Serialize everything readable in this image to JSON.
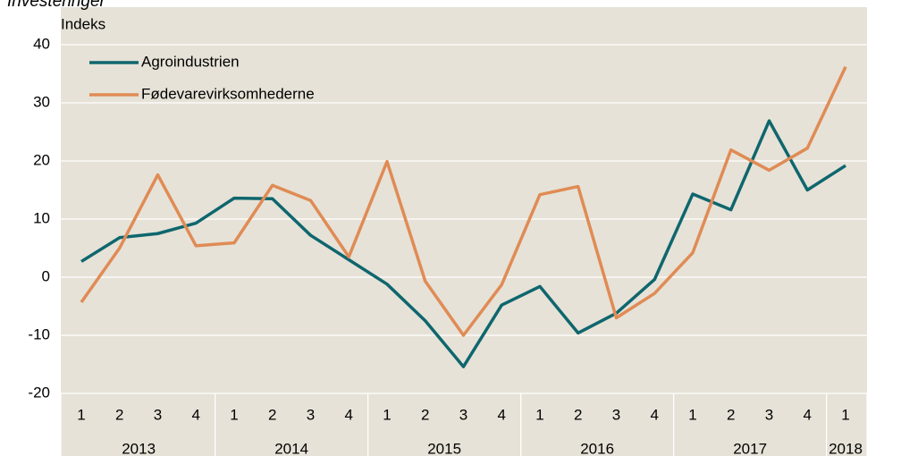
{
  "chart_data": {
    "type": "line",
    "title": "Investeringer",
    "y_label": "Indeks",
    "categories": [
      "1",
      "2",
      "3",
      "4",
      "1",
      "2",
      "3",
      "4",
      "1",
      "2",
      "3",
      "4",
      "1",
      "2",
      "3",
      "4",
      "1",
      "2",
      "3",
      "4",
      "1"
    ],
    "year_labels": [
      "2013",
      "2014",
      "2015",
      "2016",
      "2017",
      "2018"
    ],
    "series": [
      {
        "name": "Agroindustrien",
        "color": "#0f666e",
        "values": [
          2.7,
          6.8,
          7.5,
          9.3,
          13.6,
          13.5,
          7.2,
          3.0,
          -1.2,
          -7.5,
          -15.4,
          -4.8,
          -1.6,
          -9.6,
          -6.2,
          -0.4,
          14.3,
          11.6,
          26.9,
          15.0,
          19.2
        ]
      },
      {
        "name": "Fødevarevirksomhederne",
        "color": "#e08b55",
        "values": [
          -4.3,
          5.0,
          17.6,
          5.4,
          5.9,
          15.8,
          13.2,
          3.5,
          19.9,
          -0.7,
          -10.0,
          -1.3,
          14.2,
          15.6,
          -7.0,
          -2.8,
          4.2,
          21.9,
          18.4,
          22.2,
          36.2
        ]
      }
    ],
    "ylim": [
      -20,
      40
    ],
    "yticks": [
      -20,
      -10,
      0,
      10,
      20,
      30,
      40
    ],
    "grid": true,
    "legend": "upper left"
  }
}
